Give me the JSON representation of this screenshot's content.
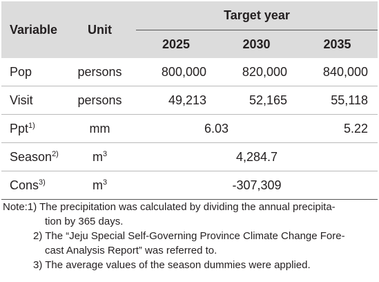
{
  "header": {
    "variable": "Variable",
    "unit": "Unit",
    "target_year": "Target year",
    "years": [
      "2025",
      "2030",
      "2035"
    ]
  },
  "rows": [
    {
      "variable": "Pop",
      "sup": "",
      "unit": "persons",
      "unit_sup": "",
      "values": [
        "800,000",
        "820,000",
        "840,000"
      ]
    },
    {
      "variable": "Visit",
      "sup": "",
      "unit": "persons",
      "unit_sup": "",
      "values": [
        "49,213",
        "52,165",
        "55,118"
      ]
    },
    {
      "variable": "Ppt",
      "sup": "1)",
      "unit": "mm",
      "unit_sup": "",
      "merged_2025_2030": "6.03",
      "value_2035": "5.22"
    },
    {
      "variable": "Season",
      "sup": "2)",
      "unit": "m",
      "unit_sup": "3",
      "merged_all": "4,284.7"
    },
    {
      "variable": "Cons",
      "sup": "3)",
      "unit": "m",
      "unit_sup": "3",
      "merged_all": "-307,309"
    }
  ],
  "notes": {
    "label": "Note: ",
    "n1_line1": "1) The precipitation was calculated by dividing the annual precipita-",
    "n1_line2": "tion by 365 days.",
    "n2_line1": "2) The “Jeju Special Self-Governing Province Climate Change Fore-",
    "n2_line2": "cast Analysis Report” was referred to.",
    "n3": "3) The average values of the season dummies were applied."
  }
}
